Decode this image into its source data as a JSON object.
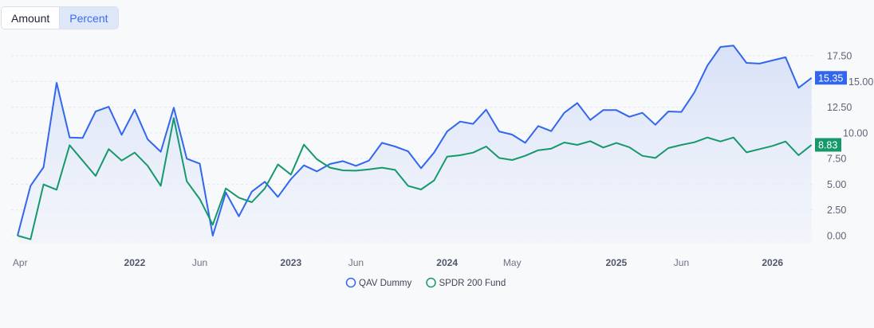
{
  "toggle": {
    "options": [
      "Amount",
      "Percent"
    ],
    "selected": "Percent"
  },
  "colors": {
    "qav": "#3366ee",
    "spdr": "#16996a",
    "fill": "#dbe4f8",
    "grid": "#e3e6ec"
  },
  "chart_data": {
    "type": "line",
    "title": "",
    "xlabel": "",
    "ylabel": "",
    "ylim": [
      -0.6,
      18.6
    ],
    "y_ticks": [
      "0.00",
      "2.50",
      "5.00",
      "7.50",
      "10.00",
      "12.50",
      "15.00",
      "17.50"
    ],
    "y_tick_values": [
      0,
      2.5,
      5,
      7.5,
      10,
      12.5,
      15,
      17.5
    ],
    "grid": true,
    "x_ticks": [
      {
        "label": "Apr",
        "at": 0.2,
        "bold": false
      },
      {
        "label": "2022",
        "at": 9,
        "bold": true
      },
      {
        "label": "Jun",
        "at": 14,
        "bold": false
      },
      {
        "label": "2023",
        "at": 21,
        "bold": true
      },
      {
        "label": "Jun",
        "at": 26,
        "bold": false
      },
      {
        "label": "2024",
        "at": 33,
        "bold": true
      },
      {
        "label": "May",
        "at": 38,
        "bold": false
      },
      {
        "label": "2025",
        "at": 46,
        "bold": true
      },
      {
        "label": "Jun",
        "at": 51,
        "bold": false
      },
      {
        "label": "2026",
        "at": 58,
        "bold": true
      }
    ],
    "legend_position": "bottom",
    "series": [
      {
        "name": "QAV Dummy",
        "color": "#3366ee",
        "filled": true,
        "last_label": "15.35",
        "values": [
          0,
          4.85,
          6.66,
          14.87,
          9.55,
          9.5,
          12.08,
          12.54,
          9.81,
          12.26,
          9.37,
          8.16,
          12.44,
          7.49,
          7.0,
          0,
          4.2,
          1.88,
          4.28,
          5.24,
          3.77,
          5.5,
          6.84,
          6.25,
          6.97,
          7.25,
          6.79,
          7.3,
          9.03,
          8.67,
          8.21,
          6.56,
          8.08,
          10.14,
          11.1,
          10.87,
          12.26,
          10.14,
          9.83,
          9.03,
          10.66,
          10.17,
          11.95,
          12.9,
          11.25,
          12.21,
          12.21,
          11.56,
          11.95,
          10.79,
          12.08,
          12.03,
          13.94,
          16.55,
          18.35,
          18.48,
          16.8,
          16.73,
          17.04,
          17.35,
          14.38,
          15.35
        ]
      },
      {
        "name": "SPDR 200 Fund",
        "color": "#16996a",
        "filled": false,
        "last_label": "8.83",
        "values": [
          0,
          -0.36,
          4.98,
          4.47,
          8.8,
          7.3,
          5.81,
          8.42,
          7.3,
          8.08,
          6.79,
          4.85,
          11.44,
          5.29,
          3.56,
          1.06,
          4.59,
          3.69,
          3.25,
          4.59,
          6.92,
          5.94,
          8.85,
          7.43,
          6.61,
          6.35,
          6.32,
          6.45,
          6.61,
          6.4,
          4.85,
          4.49,
          5.37,
          7.69,
          7.82,
          8.08,
          8.67,
          7.56,
          7.36,
          7.77,
          8.31,
          8.46,
          9.06,
          8.83,
          9.19,
          8.57,
          9.01,
          8.6,
          7.77,
          7.56,
          8.52,
          8.83,
          9.08,
          9.55,
          9.16,
          9.55,
          8.1,
          8.42,
          8.73,
          9.16,
          7.82,
          8.83
        ]
      }
    ]
  }
}
